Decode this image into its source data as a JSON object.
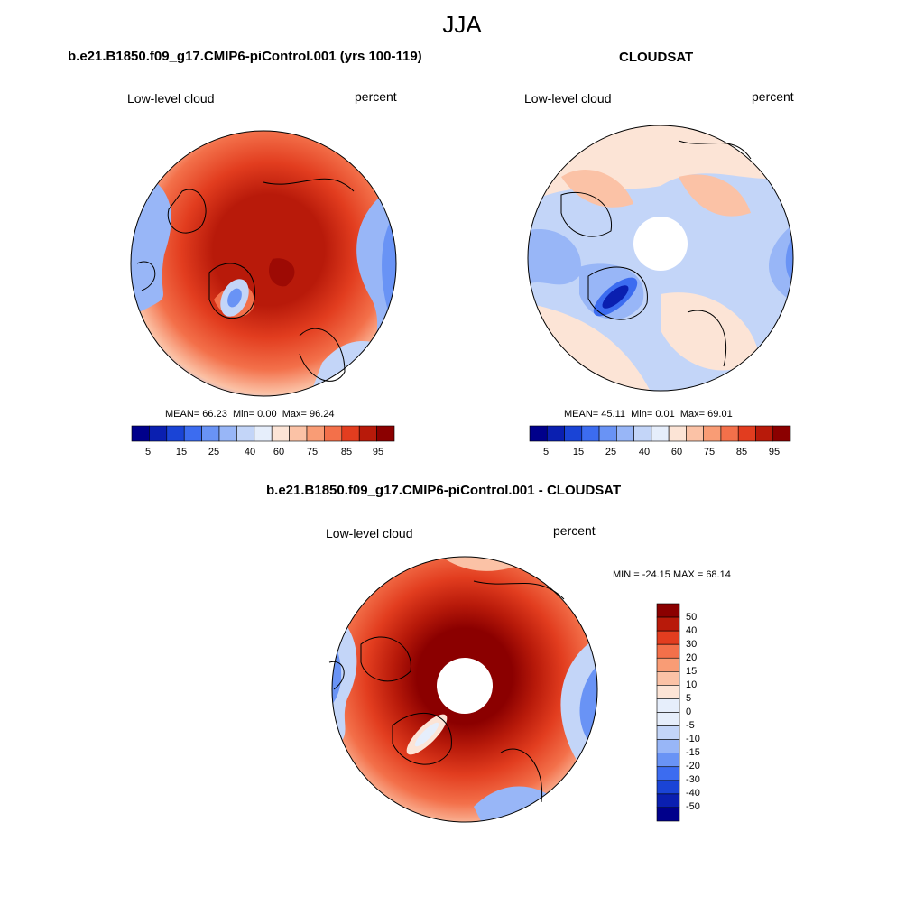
{
  "figure": {
    "title": "JJA"
  },
  "panels": [
    {
      "title": "b.e21.B1850.f09_g17.CMIP6-piControl.001 (yrs 100-119)",
      "left_label": "Low-level cloud",
      "right_label": "percent",
      "stats": {
        "mean_label": "MEAN=",
        "mean": "66.23",
        "min_label": "Min=",
        "min": "0.00",
        "max_label": "Max=",
        "max": "96.24"
      },
      "colorbar_ticks": [
        "5",
        "15",
        "25",
        "40",
        "60",
        "75",
        "85",
        "95"
      ]
    },
    {
      "title": "CLOUDSAT",
      "left_label": "Low-level cloud",
      "right_label": "percent",
      "stats": {
        "mean_label": "MEAN=",
        "mean": "45.11",
        "min_label": "Min=",
        "min": "0.01",
        "max_label": "Max=",
        "max": "69.01"
      },
      "colorbar_ticks": [
        "5",
        "15",
        "25",
        "40",
        "60",
        "75",
        "85",
        "95"
      ]
    },
    {
      "title": "b.e21.B1850.f09_g17.CMIP6-piControl.001 - CLOUDSAT",
      "left_label": "Low-level cloud",
      "right_label": "percent",
      "minmax": "MIN = -24.15 MAX =  68.14",
      "colorbar_ticks": [
        "50",
        "40",
        "30",
        "20",
        "15",
        "10",
        "5",
        "0",
        "-5",
        "-10",
        "-15",
        "-20",
        "-30",
        "-40",
        "-50"
      ]
    }
  ],
  "palette": [
    "#00008b",
    "#0a1fb0",
    "#1a44d6",
    "#3c6cf0",
    "#6993f5",
    "#98b6f7",
    "#c3d5f8",
    "#e6eefb",
    "#fce4d6",
    "#fbc2a6",
    "#f99c75",
    "#f3704a",
    "#e23d1f",
    "#b81a0a",
    "#8b0000"
  ],
  "colors": {
    "land_outline": "#000000",
    "pole_hole": "#ffffff"
  }
}
